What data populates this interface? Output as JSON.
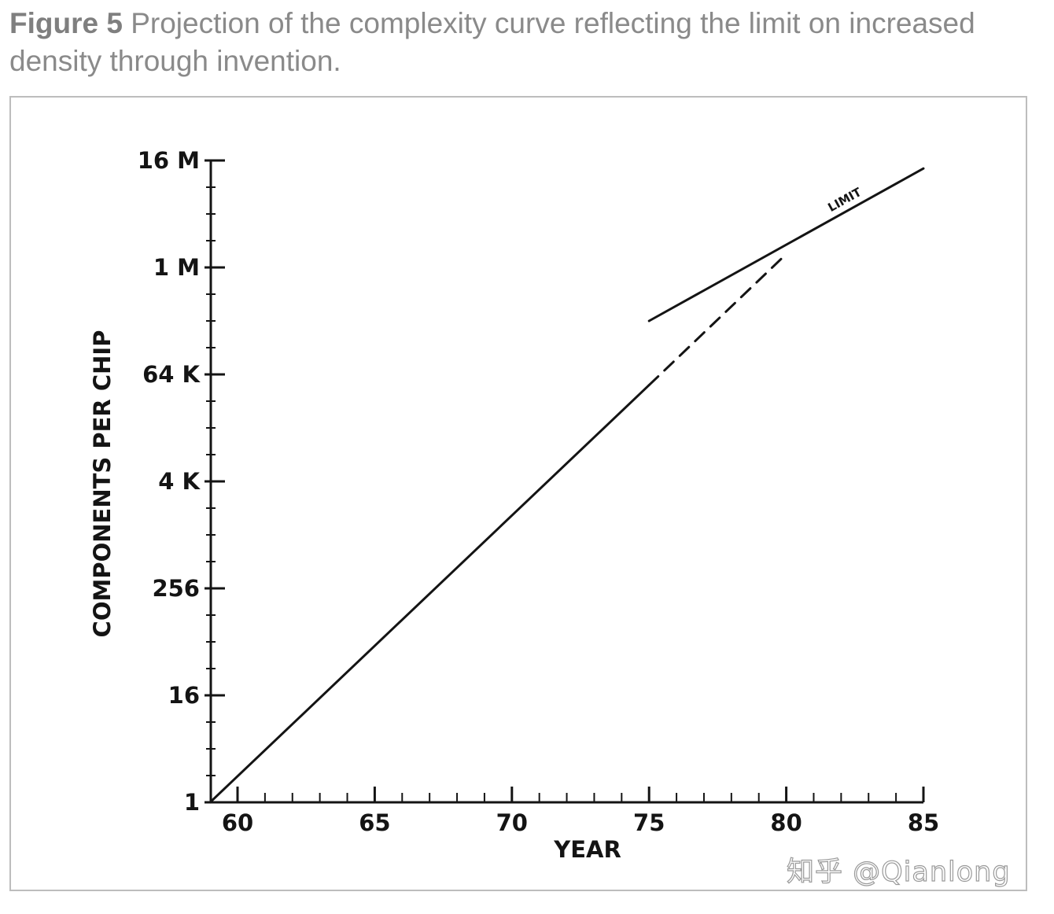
{
  "caption": {
    "label": "Figure 5",
    "text": "Projection of the complexity curve reflecting the limit on increased density through invention."
  },
  "watermark": "知乎 @Qianlong",
  "chart_data": {
    "type": "line",
    "title": "Figure 5 Projection of the complexity curve reflecting the limit on increased density through invention.",
    "xlabel": "YEAR",
    "ylabel": "COMPONENTS PER CHIP",
    "xlim": [
      59,
      85
    ],
    "ylim_log2": [
      0,
      24
    ],
    "y_scale": "log2",
    "x_ticks": [
      60,
      65,
      70,
      75,
      80,
      85
    ],
    "x_tick_labels": [
      "60",
      "65",
      "70",
      "75",
      "80",
      "85"
    ],
    "y_ticks_log2": [
      0,
      4,
      8,
      12,
      16,
      20,
      24
    ],
    "y_tick_labels": [
      "1",
      "16",
      "256",
      "4 K",
      "64 K",
      "1 M",
      "16 M"
    ],
    "grid": false,
    "series": [
      {
        "name": "Complexity curve",
        "style": "solid",
        "points": [
          {
            "x": 59,
            "y_log2": 0
          },
          {
            "x": 75,
            "y_log2": 15.6
          }
        ]
      },
      {
        "name": "Projection",
        "style": "dashed",
        "points": [
          {
            "x": 75,
            "y_log2": 15.6
          },
          {
            "x": 80,
            "y_log2": 20.5
          }
        ]
      },
      {
        "name": "Limit",
        "style": "solid",
        "points": [
          {
            "x": 75,
            "y_log2": 18.0
          },
          {
            "x": 85,
            "y_log2": 23.7
          }
        ]
      }
    ],
    "annotations": [
      {
        "text": "LIMIT",
        "x": 82.2,
        "y_log2": 22.4
      }
    ],
    "colors": {
      "ink": "#141414",
      "caption": "#8a8a8a",
      "frame": "#bdbdbd"
    }
  }
}
